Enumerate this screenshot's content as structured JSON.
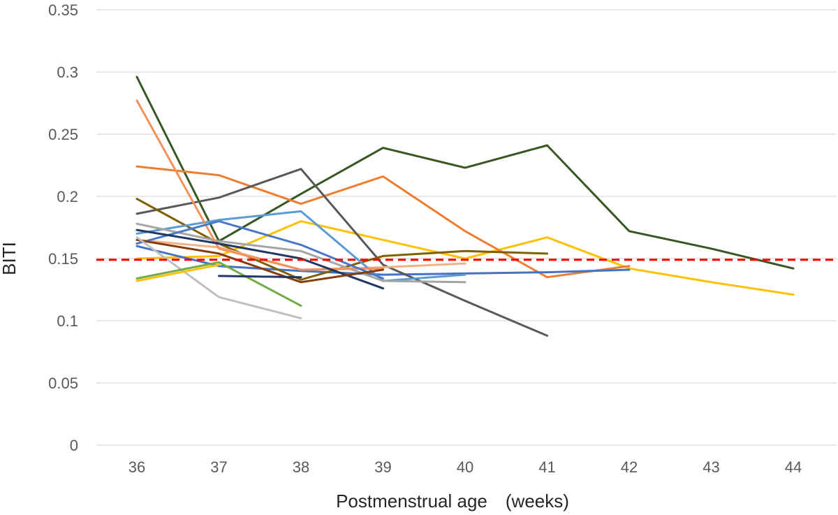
{
  "chart_data": {
    "type": "line",
    "title": "",
    "xlabel": "Postmenstrual age　(weeks)",
    "ylabel": "BITI",
    "categories": [
      "36",
      "37",
      "38",
      "39",
      "40",
      "41",
      "42",
      "43",
      "44"
    ],
    "xlim": [
      36,
      44
    ],
    "ylim": [
      0,
      0.35
    ],
    "yticks": [
      "0",
      "0.05",
      "0.1",
      "0.15",
      "0.2",
      "0.25",
      "0.3",
      "0.35"
    ],
    "grid": "horizontal",
    "legend": "none",
    "reference_line": {
      "y": 0.149,
      "color": "#ff0000",
      "style": "dashed"
    },
    "series": [
      {
        "color": "#385723",
        "points": [
          [
            36,
            0.296
          ],
          [
            37,
            0.164
          ],
          [
            38,
            0.202
          ],
          [
            39,
            0.239
          ],
          [
            40,
            0.223
          ],
          [
            41,
            0.241
          ],
          [
            42,
            0.172
          ],
          [
            43,
            0.158
          ],
          [
            44,
            0.142
          ]
        ]
      },
      {
        "color": "#ffc000",
        "points": [
          [
            36,
            0.15
          ],
          [
            37,
            0.152
          ],
          [
            38,
            0.18
          ],
          [
            39,
            0.165
          ],
          [
            40,
            0.15
          ],
          [
            41,
            0.167
          ],
          [
            42,
            0.142
          ],
          [
            43,
            0.131
          ],
          [
            44,
            0.121
          ]
        ]
      },
      {
        "color": "#ed7d31",
        "points": [
          [
            36,
            0.224
          ],
          [
            37,
            0.217
          ],
          [
            38,
            0.194
          ],
          [
            39,
            0.216
          ],
          [
            40,
            0.172
          ],
          [
            41,
            0.135
          ],
          [
            42,
            0.144
          ]
        ]
      },
      {
        "color": "#4472c4",
        "points": [
          [
            36,
            0.16
          ],
          [
            37,
            0.144
          ],
          [
            38,
            0.14
          ],
          [
            39,
            0.137
          ],
          [
            40,
            0.138
          ],
          [
            41,
            0.139
          ],
          [
            42,
            0.141
          ]
        ]
      },
      {
        "color": "#595959",
        "points": [
          [
            36,
            0.186
          ],
          [
            37,
            0.199
          ],
          [
            38,
            0.222
          ],
          [
            39,
            0.145
          ],
          [
            40,
            0.116
          ],
          [
            41,
            0.088
          ]
        ]
      },
      {
        "color": "#7f6000",
        "points": [
          [
            36,
            0.198
          ],
          [
            37,
            0.162
          ],
          [
            38,
            0.133
          ],
          [
            39,
            0.152
          ],
          [
            40,
            0.156
          ],
          [
            41,
            0.154
          ]
        ]
      },
      {
        "color": "#f4b183",
        "points": [
          [
            36,
            0.165
          ],
          [
            37,
            0.159
          ],
          [
            38,
            0.141
          ],
          [
            39,
            0.143
          ],
          [
            40,
            0.146
          ]
        ]
      },
      {
        "color": "#5b9bd5",
        "points": [
          [
            36,
            0.17
          ],
          [
            37,
            0.181
          ],
          [
            38,
            0.188
          ],
          [
            39,
            0.132
          ],
          [
            40,
            0.137
          ]
        ]
      },
      {
        "color": "#a5a5a5",
        "points": [
          [
            36,
            0.178
          ],
          [
            37,
            0.164
          ],
          [
            38,
            0.156
          ],
          [
            39,
            0.132
          ],
          [
            40,
            0.131
          ]
        ]
      },
      {
        "color": "#f4915a",
        "points": [
          [
            36,
            0.277
          ],
          [
            37,
            0.158
          ],
          [
            38,
            0.141
          ],
          [
            39,
            0.142
          ]
        ]
      },
      {
        "color": "#4a78c8",
        "points": [
          [
            36,
            0.162
          ],
          [
            37,
            0.18
          ],
          [
            38,
            0.161
          ],
          [
            39,
            0.134
          ]
        ]
      },
      {
        "color": "#1f3864",
        "points": [
          [
            36,
            0.173
          ],
          [
            37,
            0.162
          ],
          [
            38,
            0.15
          ],
          [
            39,
            0.126
          ]
        ]
      },
      {
        "color": "#843c0c",
        "points": [
          [
            36,
            0.165
          ],
          [
            37,
            0.154
          ],
          [
            38,
            0.131
          ],
          [
            39,
            0.141
          ]
        ]
      },
      {
        "color": "#bfbfbf",
        "points": [
          [
            36,
            0.167
          ],
          [
            37,
            0.119
          ],
          [
            38,
            0.102
          ]
        ]
      },
      {
        "color": "#70ad47",
        "points": [
          [
            36,
            0.134
          ],
          [
            37,
            0.147
          ],
          [
            38,
            0.112
          ]
        ]
      },
      {
        "color": "#203864",
        "points": [
          [
            37,
            0.136
          ],
          [
            38,
            0.135
          ]
        ]
      },
      {
        "color": "#ffc000",
        "points": [
          [
            36,
            0.132
          ],
          [
            37,
            0.145
          ]
        ]
      }
    ]
  }
}
